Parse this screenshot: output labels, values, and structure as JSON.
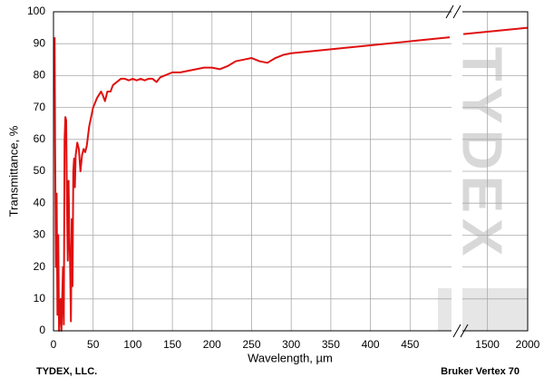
{
  "chart_data": {
    "type": "line",
    "y_label": "Transmittance, %",
    "x_label": "Wavelength, µm",
    "footer_left": "TYDEX, LLC.",
    "footer_right": "Bruker Vertex 70",
    "watermark": "TYDEX",
    "ylim": [
      0,
      100
    ],
    "yticks": [
      0,
      10,
      20,
      30,
      40,
      50,
      60,
      70,
      80,
      90,
      100
    ],
    "xlim": [
      0,
      500
    ],
    "xticks": [
      0,
      50,
      100,
      150,
      200,
      250,
      300,
      350,
      400,
      450
    ],
    "x2lim": [
      1200,
      2000
    ],
    "x2ticks": [
      1500,
      2000
    ],
    "grid": true,
    "series": [
      {
        "color": "#e01010",
        "x": [
          1.5,
          2,
          3,
          4,
          5,
          6,
          7,
          9,
          10,
          12,
          13,
          14,
          15,
          16,
          17,
          18,
          19,
          20,
          21,
          22,
          23,
          24,
          25,
          26,
          27,
          28,
          30,
          32,
          34,
          36,
          38,
          40,
          42,
          45,
          50,
          55,
          60,
          62,
          65,
          68,
          72,
          75,
          80,
          85,
          90,
          95,
          100,
          105,
          110,
          115,
          120,
          125,
          130,
          135,
          140,
          150,
          160,
          170,
          180,
          190,
          200,
          210,
          220,
          230,
          240,
          250,
          260,
          270,
          280,
          290,
          300,
          320,
          340,
          360,
          380,
          400,
          420,
          440,
          460,
          480,
          500
        ],
        "values": [
          92,
          60,
          20,
          43,
          5,
          30,
          0,
          10,
          0,
          20,
          2,
          60,
          67,
          66,
          40,
          22,
          47,
          30,
          20,
          3,
          35,
          14,
          50,
          54,
          45,
          55,
          59,
          57,
          50,
          55,
          57,
          56,
          58,
          64,
          70,
          73,
          75,
          74,
          72,
          75,
          75,
          77,
          78,
          79,
          79,
          78.5,
          79,
          78.5,
          79,
          78.5,
          79,
          79,
          78,
          79.5,
          80,
          81,
          81,
          81.5,
          82,
          82.5,
          82.5,
          82,
          83,
          84.5,
          85,
          85.5,
          84.5,
          84,
          85.5,
          86.5,
          87,
          87.5,
          88,
          88.5,
          89,
          89.5,
          90,
          90.5,
          91,
          91.5,
          92
        ]
      },
      {
        "color": "#e01010",
        "axis": "x2",
        "x": [
          1200,
          1400,
          1600,
          1800,
          2000
        ],
        "values": [
          93,
          93.5,
          94,
          94.5,
          95
        ]
      }
    ]
  }
}
